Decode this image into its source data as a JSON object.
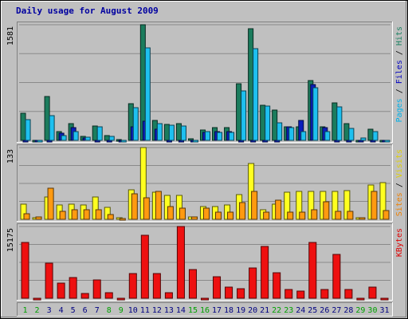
{
  "chart_data": {
    "type": "bar",
    "title": "Daily usage for August 2009",
    "x": [
      "1",
      "2",
      "3",
      "4",
      "5",
      "6",
      "7",
      "8",
      "9",
      "10",
      "11",
      "12",
      "13",
      "14",
      "15",
      "16",
      "17",
      "18",
      "19",
      "20",
      "21",
      "22",
      "23",
      "24",
      "25",
      "26",
      "27",
      "28",
      "29",
      "30",
      "31"
    ],
    "weekend_days": [
      "1",
      "2",
      "8",
      "9",
      "15",
      "16",
      "22",
      "23",
      "29",
      "30"
    ],
    "panels": [
      {
        "id": "top",
        "max_label": "1581",
        "ylim": [
          0,
          1581
        ],
        "right_label_parts": [
          {
            "text": "Pages",
            "color": "#00b0e8"
          },
          {
            "text": " / ",
            "color": "#000000"
          },
          {
            "text": "Files",
            "color": "#0000c0"
          },
          {
            "text": " / ",
            "color": "#000000"
          },
          {
            "text": "Hits",
            "color": "#1a8060"
          }
        ],
        "series": [
          {
            "name": "Hits",
            "color": "#1b7c5d",
            "values": [
              370,
              0,
              600,
              120,
              230,
              50,
              200,
              60,
              10,
              500,
              1581,
              270,
              220,
              230,
              20,
              140,
              170,
              170,
              770,
              1530,
              480,
              410,
              190,
              190,
              820,
              190,
              510,
              230,
              0,
              150,
              0
            ]
          },
          {
            "name": "Files",
            "color": "#0a1ebc",
            "values": [
              0,
              0,
              0,
              100,
              170,
              30,
              0,
              0,
              0,
              180,
              260,
              150,
              0,
              0,
              0,
              110,
              120,
              120,
              0,
              0,
              0,
              0,
              180,
              270,
              760,
              170,
              0,
              0,
              0,
              0,
              0
            ]
          },
          {
            "name": "Pages",
            "color": "#1ec0f0",
            "values": [
              280,
              0,
              340,
              60,
              120,
              40,
              180,
              50,
              0,
              450,
              1260,
              230,
              210,
              200,
              0,
              120,
              110,
              110,
              680,
              1250,
              470,
              240,
              170,
              120,
              720,
              120,
              460,
              160,
              30,
              120,
              0
            ]
          }
        ]
      },
      {
        "id": "mid",
        "max_label": "133",
        "ylim": [
          0,
          133
        ],
        "right_label_parts": [
          {
            "text": "Sites",
            "color": "#f08000"
          },
          {
            "text": " / ",
            "color": "#000000"
          },
          {
            "text": "Visits",
            "color": "#e0d000"
          }
        ],
        "series": [
          {
            "name": "Visits",
            "color": "#ffff20",
            "values": [
              28,
              3,
              42,
              26,
              28,
              27,
              42,
              22,
              3,
              54,
              133,
              50,
              44,
              44,
              4,
              24,
              23,
              26,
              46,
              104,
              17,
              28,
              50,
              51,
              52,
              51,
              52,
              53,
              3,
              64,
              68
            ]
          },
          {
            "name": "Sites",
            "color": "#ff9a10",
            "values": [
              10,
              4,
              57,
              15,
              17,
              17,
              17,
              9,
              2,
              47,
              40,
              51,
              24,
              20,
              4,
              20,
              13,
              13,
              31,
              51,
              14,
              36,
              14,
              13,
              18,
              32,
              15,
              15,
              3,
              51,
              16
            ]
          }
        ]
      },
      {
        "id": "bot",
        "max_label": "15175",
        "ylim": [
          0,
          15175
        ],
        "right_label_parts": [
          {
            "text": "KBytes",
            "color": "#e00000"
          }
        ],
        "series": [
          {
            "name": "KBytes",
            "color": "#ee1010",
            "values": [
              11800,
              0,
              7400,
              3200,
              4400,
              1000,
              3800,
              1200,
              0,
              5300,
              13300,
              5200,
              1200,
              15175,
              6100,
              0,
              4500,
              2300,
              2100,
              6400,
              10900,
              5400,
              1800,
              1500,
              11800,
              1800,
              9200,
              1900,
              0,
              2400,
              0
            ]
          }
        ]
      }
    ],
    "colors": {
      "background": "#c0c0c0",
      "gridline": "#8a8a8a",
      "title": "#0000a0",
      "weekday_label": "#000080",
      "weekend_label": "#00a000"
    }
  }
}
